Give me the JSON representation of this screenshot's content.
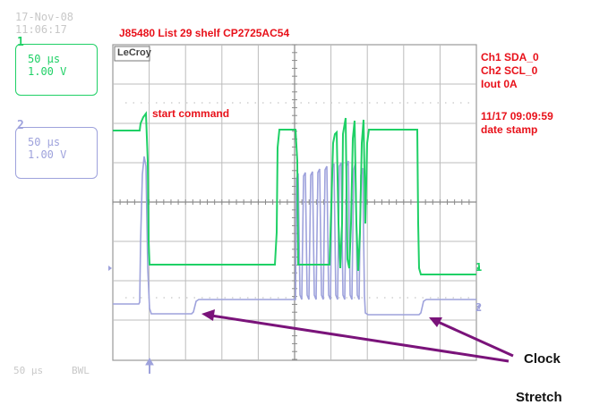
{
  "timestamp": {
    "date": "17-Nov-08",
    "time": "11:06:17"
  },
  "title": "J85480 List 29 shelf CP2725AC54",
  "channels": [
    {
      "number": "1",
      "timebase": "50 µs",
      "volts": "1.00 V",
      "color": "#1fd066"
    },
    {
      "number": "2",
      "timebase": "50 µs",
      "volts": "1.00 V",
      "color": "#9ea2dc"
    }
  ],
  "scope": {
    "logo": "LeCroy"
  },
  "annotations": {
    "start_command": "start command",
    "info_lines": [
      "Ch1 SDA_0",
      "Ch2 SCL_0",
      "Iout 0A"
    ],
    "date_stamp_lines": [
      "11/17 09:09:59",
      "date stamp"
    ],
    "clock": "Clock",
    "stretch": "Stretch"
  },
  "markers": {
    "ch1": "1",
    "ch2": "2"
  },
  "status_bar": {
    "timebase": "50 µs",
    "bwl": "BWL"
  },
  "colors": {
    "ch1": "#1fd066",
    "ch2": "#9ea2dc",
    "annotation": "#e8111a",
    "arrow": "#7a137a",
    "grid": "#b8b8b8"
  }
}
